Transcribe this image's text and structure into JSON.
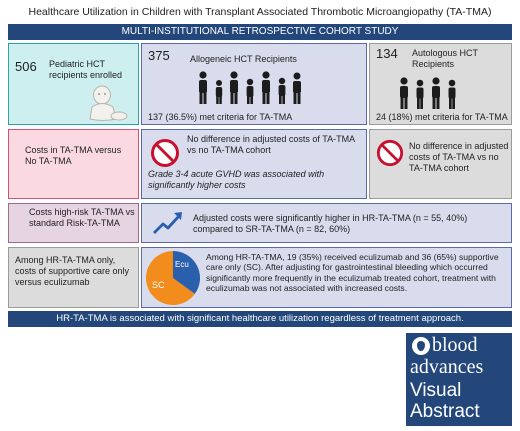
{
  "title": "Healthcare Utilization in Children with Transplant Associated Thrombotic Microangiopathy (TA-TMA)",
  "study_banner": "MULTI-INSTITUTIONAL RETROSPECTIVE COHORT STUDY",
  "cohort": {
    "enrolled_count": "506",
    "enrolled_label": "Pediatric HCT recipients enrolled",
    "allo_count": "375",
    "allo_label": "Allogeneic HCT Recipients",
    "allo_ta_tma": "137 (36.5%) met criteria for TA-TMA",
    "auto_count": "134",
    "auto_label": "Autologous HCT Recipients",
    "auto_ta_tma": "24 (18%) met criteria for TA-TMA"
  },
  "costs": {
    "label": "Costs in TA-TMA versus No TA-TMA",
    "allo_result": "No difference in adjusted costs of TA-TMA vs no TA-TMA cohort",
    "allo_note": "Grade 3-4 acute GVHD was associated with significantly higher costs",
    "auto_result": "No difference in adjusted costs of TA-TMA vs no TA-TMA cohort"
  },
  "risk": {
    "label": "Costs high-risk TA-TMA vs standard Risk-TA-TMA",
    "result": "Adjusted costs were significantly higher in HR-TA-TMA (n = 55, 40%) compared to SR-TA-TMA (n = 82, 60%)"
  },
  "treatment": {
    "label": "Among HR-TA-TMA only, costs of supportive care only versus eculizumab",
    "result": "Among HR-TA-TMA, 19 (35%) received eculizumab and 36 (65%) supportive care only (SC). After adjusting for gastrointestinal bleeding which occurred significantly more frequently in the eculizumab treated cohort, treatment with eculizumab was not associated with increased costs.",
    "pie_sc": "SC",
    "pie_ecu": "Ecu",
    "ecu_fraction": 0.35,
    "sc_fraction": 0.65,
    "sc_color": "#f28c1c",
    "ecu_color": "#2a5fae"
  },
  "conclusion": "HR-TA-TMA is associated with significant healthcare utilization regardless of treatment approach.",
  "logo": {
    "line1": "blood",
    "line2": "advances",
    "line3": "Visual",
    "line4": "Abstract"
  },
  "colors": {
    "navy": "#23477a",
    "teal": "#2aa4aa",
    "pink": "#d0546f"
  }
}
